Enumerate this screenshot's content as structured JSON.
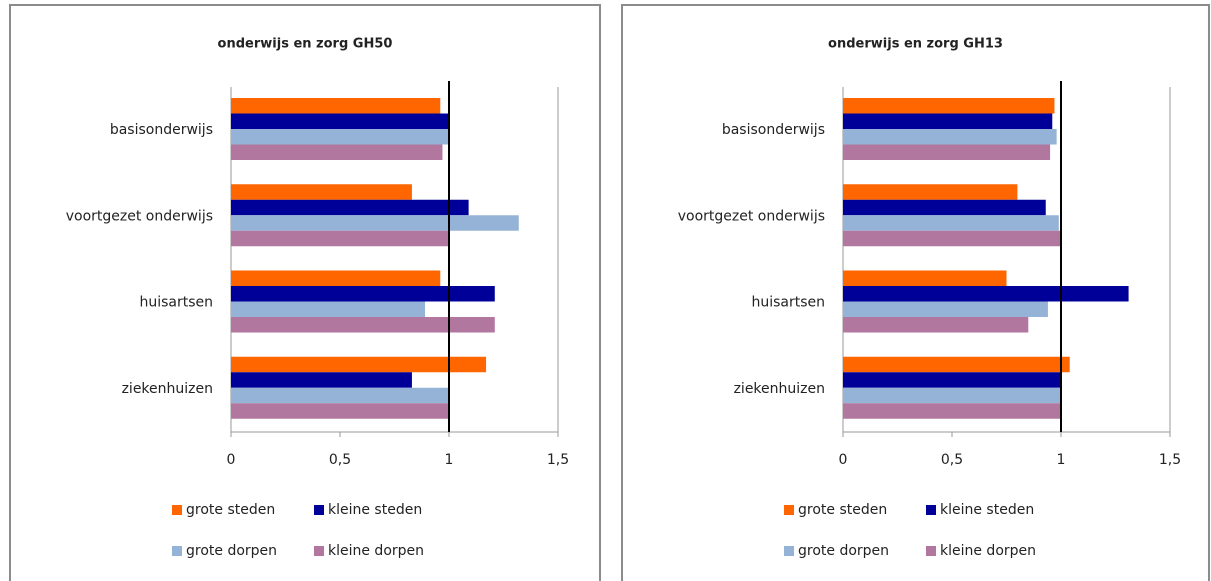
{
  "chart_data": [
    {
      "type": "bar",
      "orientation": "horizontal",
      "title": "onderwijs en zorg GH50",
      "categories": [
        "basisonderwijs",
        "voortgezet onderwijs",
        "huisartsen",
        "ziekenhuizen"
      ],
      "series": [
        {
          "name": "grote steden",
          "color": "#ff6600",
          "values": [
            0.96,
            0.83,
            0.96,
            1.17
          ]
        },
        {
          "name": "kleine steden",
          "color": "#000099",
          "values": [
            1.0,
            1.09,
            1.21,
            0.83
          ]
        },
        {
          "name": "grote dorpen",
          "color": "#95b3d7",
          "values": [
            1.0,
            1.32,
            0.89,
            1.0
          ]
        },
        {
          "name": "kleine dorpen",
          "color": "#b2779f",
          "values": [
            0.97,
            1.0,
            1.21,
            1.0
          ]
        }
      ],
      "xlim": [
        0,
        1.5
      ],
      "xticks": [
        0,
        {
          "value": 0.5,
          "label": "0,5"
        },
        1,
        {
          "value": 1.5,
          "label": "1,5"
        }
      ],
      "reference_line": 1,
      "legend": "bottom"
    },
    {
      "type": "bar",
      "orientation": "horizontal",
      "title": "onderwijs en zorg GH13",
      "categories": [
        "basisonderwijs",
        "voortgezet onderwijs",
        "huisartsen",
        "ziekenhuizen"
      ],
      "series": [
        {
          "name": "grote steden",
          "color": "#ff6600",
          "values": [
            0.97,
            0.8,
            0.75,
            1.04
          ]
        },
        {
          "name": "kleine steden",
          "color": "#000099",
          "values": [
            0.96,
            0.93,
            1.31,
            1.0
          ]
        },
        {
          "name": "grote dorpen",
          "color": "#95b3d7",
          "values": [
            0.98,
            0.99,
            0.94,
            1.0
          ]
        },
        {
          "name": "kleine dorpen",
          "color": "#b2779f",
          "values": [
            0.95,
            1.0,
            0.85,
            1.0
          ]
        }
      ],
      "xlim": [
        0,
        1.5
      ],
      "xticks": [
        0,
        {
          "value": 0.5,
          "label": "0,5"
        },
        1,
        {
          "value": 1.5,
          "label": "1,5"
        }
      ],
      "reference_line": 1,
      "legend": "bottom"
    }
  ]
}
